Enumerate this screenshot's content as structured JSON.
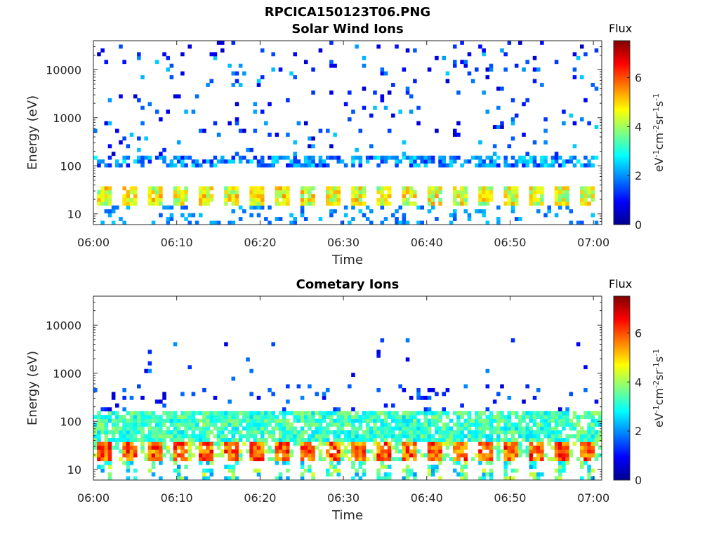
{
  "figure": {
    "title": "RPCICA150123T06.PNG"
  },
  "chart_data": [
    {
      "type": "heatmap",
      "title": "Solar Wind Ions",
      "xlabel": "Time",
      "ylabel": "Energy (eV)",
      "x_ticks": [
        "06:00",
        "06:10",
        "06:20",
        "06:30",
        "06:40",
        "06:50",
        "07:00"
      ],
      "x_range": [
        "06:00",
        "07:01"
      ],
      "y_scale": "log",
      "y_ticks": [
        "10",
        "100",
        "1000",
        "10000"
      ],
      "y_range": [
        6,
        40000
      ],
      "colorbar": {
        "label": "Flux",
        "unit": "eV-1cm-2sr-1s-1",
        "ticks": [
          "0",
          "2",
          "4",
          "6"
        ],
        "range": [
          0,
          7.5
        ],
        "colormap": "jet"
      },
      "features": [
        {
          "band": "dense core",
          "energy": [
            15,
            35
          ],
          "flux": [
            3.5,
            5.5
          ]
        },
        {
          "band": "low-energy spots",
          "energy": [
            6,
            15
          ],
          "flux": [
            1.5,
            2.5
          ]
        },
        {
          "band": "line near 110 eV",
          "energy": [
            90,
            150
          ],
          "flux": [
            1.0,
            2.8
          ]
        },
        {
          "band": "sparse high-energy counts",
          "energy": [
            150,
            40000
          ],
          "flux": [
            0.5,
            2.5
          ]
        }
      ],
      "scan_count": 20
    },
    {
      "type": "heatmap",
      "title": "Cometary Ions",
      "xlabel": "Time",
      "ylabel": "Energy (eV)",
      "x_ticks": [
        "06:00",
        "06:10",
        "06:20",
        "06:30",
        "06:40",
        "06:50",
        "07:00"
      ],
      "x_range": [
        "06:00",
        "07:01"
      ],
      "y_scale": "log",
      "y_ticks": [
        "10",
        "100",
        "1000",
        "10000"
      ],
      "y_range": [
        6,
        40000
      ],
      "colorbar": {
        "label": "Flux",
        "unit": "eV-1cm-2sr-1s-1",
        "ticks": [
          "0",
          "2",
          "4",
          "6"
        ],
        "range": [
          0,
          7.5
        ],
        "colormap": "jet"
      },
      "features": [
        {
          "band": "peak",
          "energy": [
            15,
            35
          ],
          "flux": [
            5.0,
            6.8
          ]
        },
        {
          "band": "broad band",
          "energy": [
            30,
            150
          ],
          "flux": [
            2.5,
            4.0
          ]
        },
        {
          "band": "low-energy tail",
          "energy": [
            6,
            15
          ],
          "flux": [
            2.0,
            4.5
          ]
        },
        {
          "band": "sparse high-energy counts",
          "energy": [
            150,
            5000
          ],
          "flux": [
            0.5,
            2.0
          ]
        }
      ],
      "scan_count": 20
    }
  ]
}
